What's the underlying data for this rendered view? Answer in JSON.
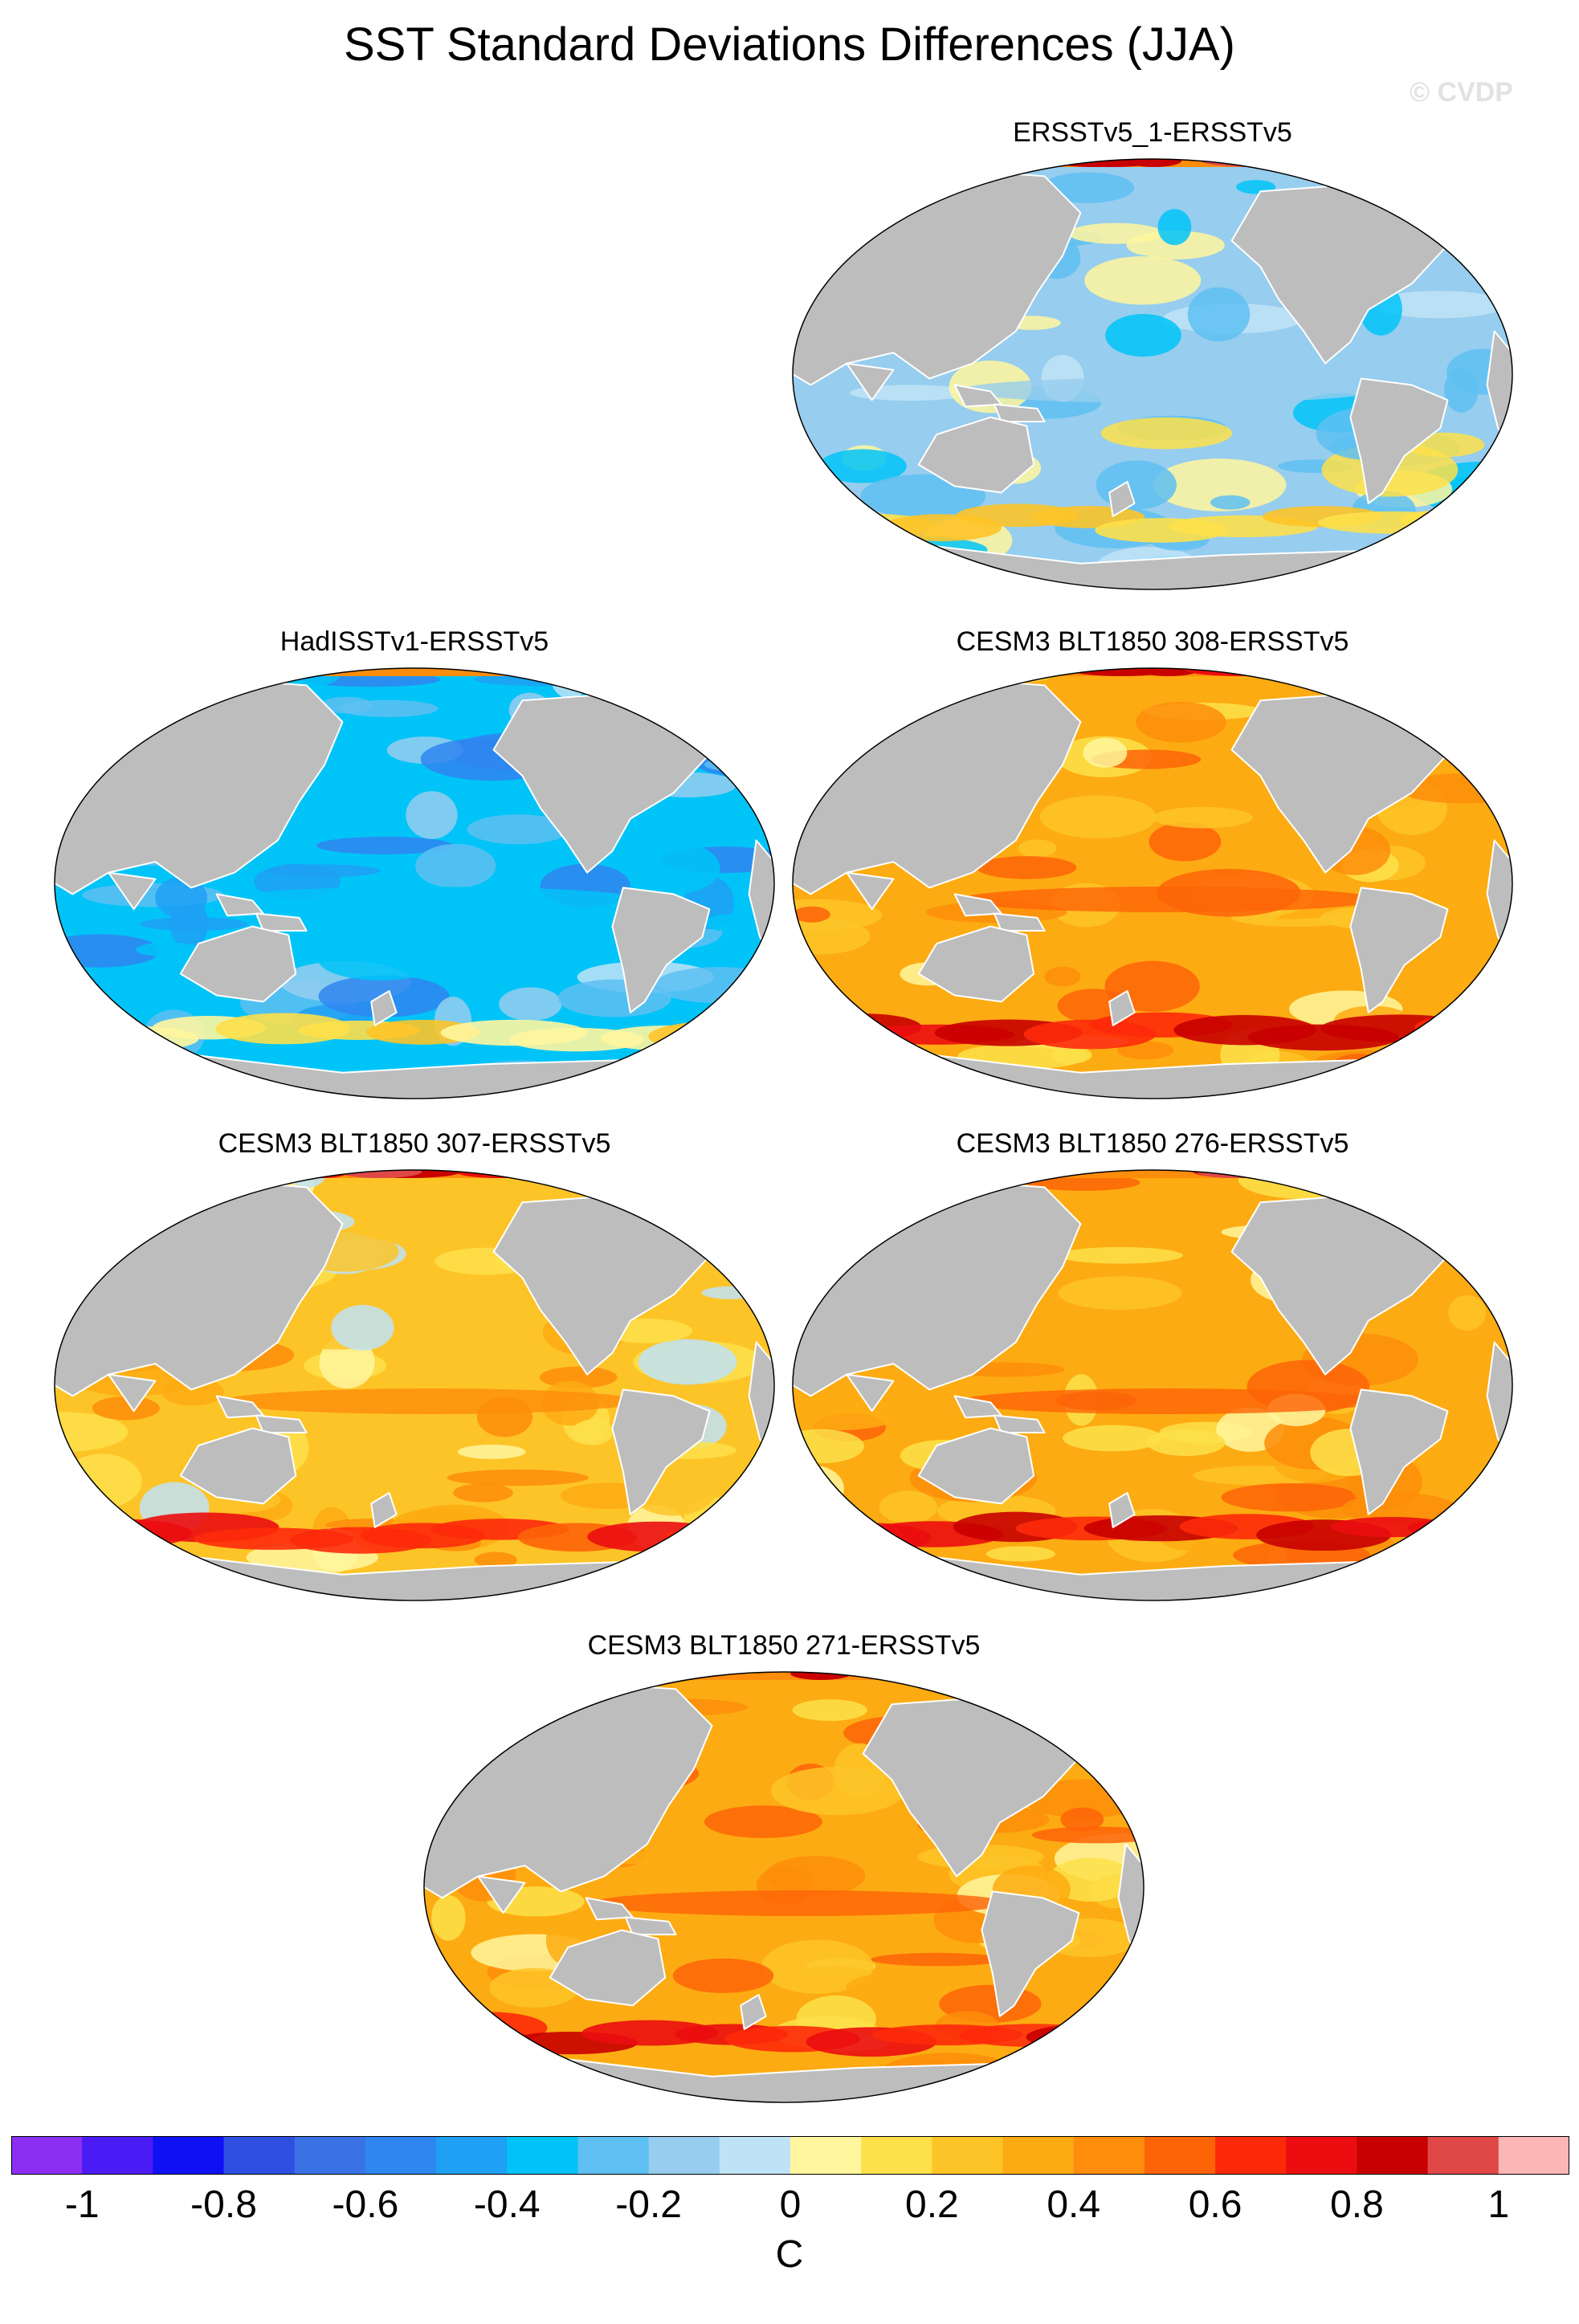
{
  "title": "SST Standard Deviations Differences (JJA)",
  "watermark": "© CVDP",
  "panels": [
    {
      "title": "ERSSTv5_1-ERSSTv5",
      "warmth": -0.12
    },
    {
      "title": "HadISSTv1-ERSSTv5",
      "warmth": -0.35
    },
    {
      "title": "CESM3 BLT1850 308-ERSSTv5",
      "warmth": 0.3
    },
    {
      "title": "CESM3 BLT1850 307-ERSSTv5",
      "warmth": 0.22
    },
    {
      "title": "CESM3 BLT1850 276-ERSSTv5",
      "warmth": 0.32
    },
    {
      "title": "CESM3 BLT1850 271-ERSSTv5",
      "warmth": 0.3
    }
  ],
  "colorbar": {
    "colors": [
      "#8b2ff5",
      "#4b1bf5",
      "#1010f5",
      "#2f4fe0",
      "#3a72e6",
      "#2f86f0",
      "#1fa0f5",
      "#00c4f8",
      "#5ebff2",
      "#97cdee",
      "#bfe3f6",
      "#fff69e",
      "#fde04a",
      "#fdc428",
      "#fdab12",
      "#fd8d0a",
      "#fd6408",
      "#fd2a0a",
      "#eb0d0f",
      "#c80000",
      "#e04848",
      "#fcb6b6"
    ],
    "labels": [
      "-1",
      "-0.8",
      "-0.6",
      "-0.4",
      "-0.2",
      "0",
      "0.2",
      "0.4",
      "0.6",
      "0.8",
      "1"
    ],
    "units": "C"
  },
  "colors": {
    "land": "#bdbdbd",
    "coast": "#ffffff",
    "ocean_outline": "#000000"
  }
}
